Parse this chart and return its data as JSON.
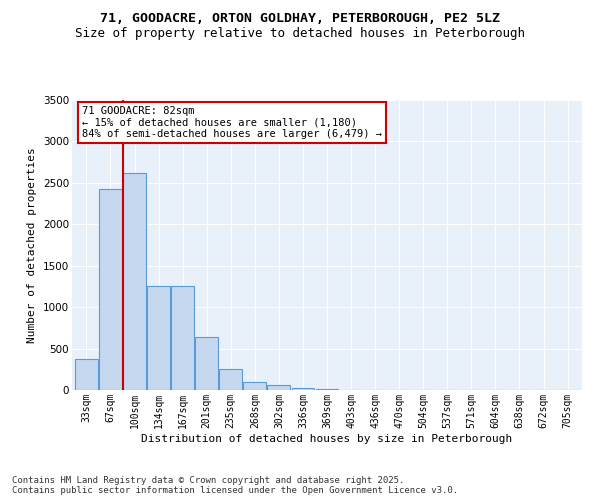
{
  "title": "71, GOODACRE, ORTON GOLDHAY, PETERBOROUGH, PE2 5LZ",
  "subtitle": "Size of property relative to detached houses in Peterborough",
  "xlabel": "Distribution of detached houses by size in Peterborough",
  "ylabel": "Number of detached properties",
  "categories": [
    "33sqm",
    "67sqm",
    "100sqm",
    "134sqm",
    "167sqm",
    "201sqm",
    "235sqm",
    "268sqm",
    "302sqm",
    "336sqm",
    "369sqm",
    "403sqm",
    "436sqm",
    "470sqm",
    "504sqm",
    "537sqm",
    "571sqm",
    "604sqm",
    "638sqm",
    "672sqm",
    "705sqm"
  ],
  "bar_heights": [
    380,
    2420,
    2620,
    1250,
    1250,
    640,
    250,
    100,
    55,
    30,
    10,
    5,
    3,
    2,
    1,
    0,
    0,
    0,
    0,
    0,
    0
  ],
  "bar_color": "#c5d8f0",
  "bar_edge_color": "#5b9bd5",
  "vline_x_idx": 1.5,
  "vline_color": "#cc0000",
  "annotation_text": "71 GOODACRE: 82sqm\n← 15% of detached houses are smaller (1,180)\n84% of semi-detached houses are larger (6,479) →",
  "annotation_box_facecolor": "#ffffff",
  "annotation_box_edgecolor": "#cc0000",
  "ylim": [
    0,
    3500
  ],
  "yticks": [
    0,
    500,
    1000,
    1500,
    2000,
    2500,
    3000,
    3500
  ],
  "bg_color": "#e8f0fa",
  "grid_color": "#ffffff",
  "footer": "Contains HM Land Registry data © Crown copyright and database right 2025.\nContains public sector information licensed under the Open Government Licence v3.0.",
  "title_fontsize": 9.5,
  "subtitle_fontsize": 9,
  "tick_fontsize": 7,
  "axis_label_fontsize": 8,
  "footer_fontsize": 6.5
}
